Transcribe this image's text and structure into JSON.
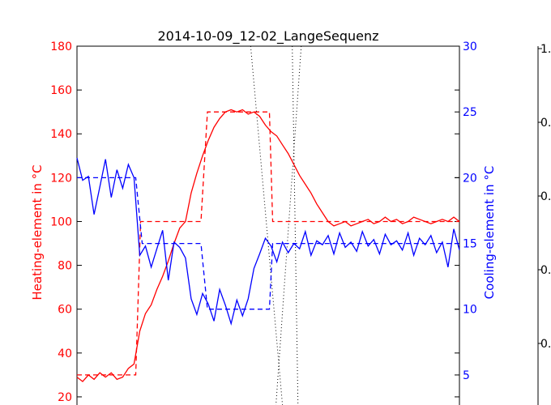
{
  "chart_data": {
    "type": "line",
    "title": "2014-10-09_12-02_LangeSequenz",
    "x": [
      0,
      7,
      14,
      21,
      28,
      35,
      42,
      49,
      56,
      63,
      70,
      77,
      84,
      91,
      98,
      105,
      112,
      119,
      126,
      133,
      140,
      147,
      154,
      161,
      168,
      175,
      182,
      189,
      196,
      203,
      210,
      217,
      224,
      231,
      238,
      245,
      252,
      259,
      266,
      273,
      280,
      287,
      294,
      301,
      308,
      315,
      322,
      329,
      336,
      343,
      350,
      357,
      364,
      371,
      378,
      385,
      392,
      399,
      406,
      413,
      420,
      427,
      434,
      441,
      448,
      455,
      462,
      469
    ],
    "left_axis": {
      "label": "Heating-element in °C",
      "color": "#ff0000",
      "ylim": [
        10,
        180
      ],
      "ticks": [
        "20",
        "40",
        "60",
        "80",
        "100",
        "120",
        "140",
        "160",
        "180"
      ]
    },
    "right_axis": {
      "label": "Cooling-element in °C",
      "color": "#0000ff",
      "ylim": [
        1.67,
        30
      ],
      "ticks": [
        "5",
        "10",
        "15",
        "20",
        "25",
        "30"
      ]
    },
    "series": [
      {
        "axis": "left",
        "color": "#ff0000",
        "style": "solid",
        "values": [
          29,
          27,
          30,
          28,
          31,
          29,
          31,
          28,
          29,
          33,
          35,
          50,
          58,
          62,
          69,
          75,
          82,
          90,
          97,
          100,
          113,
          122,
          130,
          137,
          143,
          147,
          150,
          151,
          150,
          151,
          149,
          150,
          148,
          144,
          141,
          139,
          135,
          131,
          126,
          121,
          117,
          113,
          108,
          104,
          100,
          98,
          99,
          100,
          98,
          99,
          100,
          101,
          99,
          100,
          102,
          100,
          101,
          99,
          100,
          102,
          101,
          100,
          99,
          100,
          101,
          100,
          102,
          100
        ]
      },
      {
        "axis": "left",
        "color": "#ff0000",
        "style": "dashed",
        "steps": [
          [
            0,
            30
          ],
          [
            72,
            30
          ],
          [
            78,
            100
          ],
          [
            152,
            100
          ],
          [
            160,
            150
          ],
          [
            236,
            150
          ],
          [
            240,
            100
          ],
          [
            469,
            100
          ]
        ]
      },
      {
        "axis": "right",
        "color": "#0000ff",
        "style": "solid",
        "values": [
          21.5,
          19.8,
          20.1,
          17.2,
          19.3,
          21.4,
          18.5,
          20.6,
          19.2,
          21,
          20,
          14.1,
          14.8,
          13.2,
          14.6,
          16,
          12.2,
          15.1,
          14.7,
          13.9,
          10.8,
          9.6,
          11.2,
          10.4,
          9.1,
          11.5,
          10.3,
          8.9,
          10.7,
          9.5,
          10.8,
          13.1,
          14.2,
          15.4,
          14.8,
          13.6,
          15.1,
          14.3,
          15,
          14.6,
          15.9,
          14.1,
          15.2,
          14.9,
          15.6,
          14.2,
          15.8,
          14.7,
          15.1,
          14.4,
          15.9,
          14.8,
          15.3,
          14.2,
          15.7,
          14.9,
          15.2,
          14.5,
          15.8,
          14.1,
          15.4,
          14.9,
          15.6,
          14.3,
          15.1,
          13.2,
          16.1,
          14.5
        ]
      },
      {
        "axis": "right",
        "color": "#0000ff",
        "style": "dashed",
        "steps": [
          [
            0,
            20
          ],
          [
            72,
            20
          ],
          [
            80,
            15
          ],
          [
            152,
            15
          ],
          [
            160,
            10
          ],
          [
            236,
            10
          ],
          [
            240,
            15
          ],
          [
            469,
            15
          ]
        ]
      }
    ],
    "vlines": [
      213,
      252,
      275,
      244,
      264,
      271
    ],
    "x_visible_range": [
      0,
      469
    ],
    "grid": false,
    "right_panel_partial_ticks": [
      "1.",
      "0.",
      "0.",
      "0.",
      "0."
    ]
  }
}
